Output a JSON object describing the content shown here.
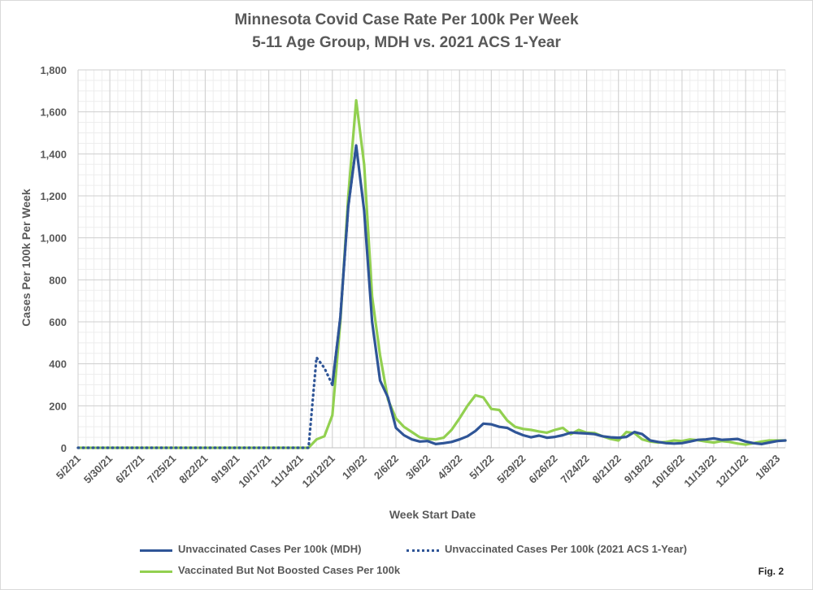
{
  "chart_data": {
    "type": "line",
    "title": "Minnesota Covid Case Rate Per 100k Per Week",
    "subtitle": "5-11 Age Group, MDH vs. 2021 ACS 1-Year",
    "xlabel": "Week Start Date",
    "ylabel": "Cases Per 100k Per Week",
    "ylim": [
      0,
      1800
    ],
    "yticks": [
      0,
      200,
      400,
      600,
      800,
      1000,
      1200,
      1400,
      1600,
      1800
    ],
    "ytick_labels": [
      "0",
      "200",
      "400",
      "600",
      "800",
      "1,000",
      "1,200",
      "1,400",
      "1,600",
      "1,800"
    ],
    "xtick_labels": [
      "5/2/21",
      "5/30/21",
      "6/27/21",
      "7/25/21",
      "8/22/21",
      "9/19/21",
      "10/17/21",
      "11/14/21",
      "12/12/21",
      "1/9/22",
      "2/6/22",
      "3/6/22",
      "4/3/22",
      "5/1/22",
      "5/29/22",
      "6/26/22",
      "7/24/22",
      "8/21/22",
      "9/18/22",
      "10/16/22",
      "11/13/22",
      "12/11/22",
      "1/8/23"
    ],
    "x_start": "2021-05-02",
    "x_end": "2023-01-15",
    "grid": true,
    "legend_position": "bottom",
    "series": [
      {
        "name": "Unvaccinated Cases Per 100k (MDH)",
        "color": "#2f5597",
        "style": "solid",
        "x": [
          "2021-05-02",
          "2021-11-21",
          "2021-11-28",
          "2021-12-05",
          "2021-12-12",
          "2021-12-19",
          "2021-12-26",
          "2022-01-02",
          "2022-01-09",
          "2022-01-16",
          "2022-01-23",
          "2022-01-30",
          "2022-02-06",
          "2022-02-13",
          "2022-02-20",
          "2022-02-27",
          "2022-03-06",
          "2022-03-13",
          "2022-03-20",
          "2022-03-27",
          "2022-04-03",
          "2022-04-10",
          "2022-04-17",
          "2022-04-24",
          "2022-05-01",
          "2022-05-08",
          "2022-05-15",
          "2022-05-22",
          "2022-05-29",
          "2022-06-05",
          "2022-06-12",
          "2022-06-19",
          "2022-06-26",
          "2022-07-03",
          "2022-07-10",
          "2022-07-17",
          "2022-07-24",
          "2022-07-31",
          "2022-08-07",
          "2022-08-14",
          "2022-08-21",
          "2022-08-28",
          "2022-09-04",
          "2022-09-11",
          "2022-09-18",
          "2022-09-25",
          "2022-10-02",
          "2022-10-09",
          "2022-10-16",
          "2022-10-23",
          "2022-10-30",
          "2022-11-06",
          "2022-11-13",
          "2022-11-20",
          "2022-11-27",
          "2022-12-04",
          "2022-12-11",
          "2022-12-18",
          "2022-12-25",
          "2023-01-01",
          "2023-01-08",
          "2023-01-15"
        ],
        "values": [
          null,
          null,
          null,
          null,
          300,
          620,
          1150,
          1440,
          1130,
          600,
          320,
          240,
          95,
          60,
          40,
          30,
          32,
          18,
          22,
          28,
          40,
          55,
          80,
          115,
          112,
          100,
          95,
          75,
          60,
          50,
          58,
          48,
          52,
          60,
          72,
          70,
          68,
          65,
          55,
          50,
          48,
          52,
          75,
          65,
          35,
          28,
          22,
          20,
          22,
          30,
          38,
          40,
          45,
          38,
          40,
          42,
          30,
          22,
          18,
          25,
          32,
          35
        ]
      },
      {
        "name": "Unvaccinated Cases Per 100k (2021 ACS 1-Year)",
        "color": "#2f5597",
        "style": "dotted",
        "x": [
          "2021-05-02",
          "2021-11-14",
          "2021-11-21",
          "2021-11-28",
          "2021-12-05",
          "2021-12-12",
          "2021-12-19",
          "2021-12-26",
          "2022-01-02"
        ],
        "values": [
          0,
          0,
          0,
          430,
          380,
          300,
          620,
          1150,
          1440
        ]
      },
      {
        "name": "Vaccinated But Not Boosted Cases Per 100k",
        "color": "#92d050",
        "style": "solid",
        "x": [
          "2021-05-02",
          "2021-11-21",
          "2021-11-28",
          "2021-12-05",
          "2021-12-12",
          "2021-12-19",
          "2021-12-26",
          "2022-01-02",
          "2022-01-09",
          "2022-01-16",
          "2022-01-23",
          "2022-01-30",
          "2022-02-06",
          "2022-02-13",
          "2022-02-20",
          "2022-02-27",
          "2022-03-06",
          "2022-03-13",
          "2022-03-20",
          "2022-03-27",
          "2022-04-03",
          "2022-04-10",
          "2022-04-17",
          "2022-04-24",
          "2022-05-01",
          "2022-05-08",
          "2022-05-15",
          "2022-05-22",
          "2022-05-29",
          "2022-06-05",
          "2022-06-12",
          "2022-06-19",
          "2022-06-26",
          "2022-07-03",
          "2022-07-10",
          "2022-07-17",
          "2022-07-24",
          "2022-07-31",
          "2022-08-07",
          "2022-08-14",
          "2022-08-21",
          "2022-08-28",
          "2022-09-04",
          "2022-09-11",
          "2022-09-18",
          "2022-09-25",
          "2022-10-02",
          "2022-10-09",
          "2022-10-16",
          "2022-10-23",
          "2022-10-30",
          "2022-11-06",
          "2022-11-13",
          "2022-11-20",
          "2022-11-27",
          "2022-12-04",
          "2022-12-11",
          "2022-12-18",
          "2022-12-25",
          "2023-01-01",
          "2023-01-08",
          "2023-01-15"
        ],
        "values": [
          0,
          0,
          40,
          55,
          155,
          600,
          1200,
          1655,
          1350,
          720,
          440,
          230,
          140,
          100,
          75,
          50,
          42,
          40,
          48,
          85,
          140,
          200,
          250,
          240,
          185,
          180,
          130,
          100,
          90,
          85,
          78,
          72,
          85,
          95,
          65,
          85,
          72,
          70,
          55,
          42,
          35,
          75,
          70,
          40,
          30,
          25,
          28,
          35,
          32,
          40,
          36,
          30,
          25,
          32,
          28,
          20,
          15,
          22,
          30,
          35,
          35,
          35
        ]
      }
    ]
  },
  "legend": {
    "item1": "Unvaccinated Cases Per 100k (MDH)",
    "item2": "Unvaccinated Cases Per 100k (2021 ACS 1-Year)",
    "item3": "Vaccinated But Not Boosted Cases Per 100k"
  },
  "fig_label": "Fig. 2"
}
